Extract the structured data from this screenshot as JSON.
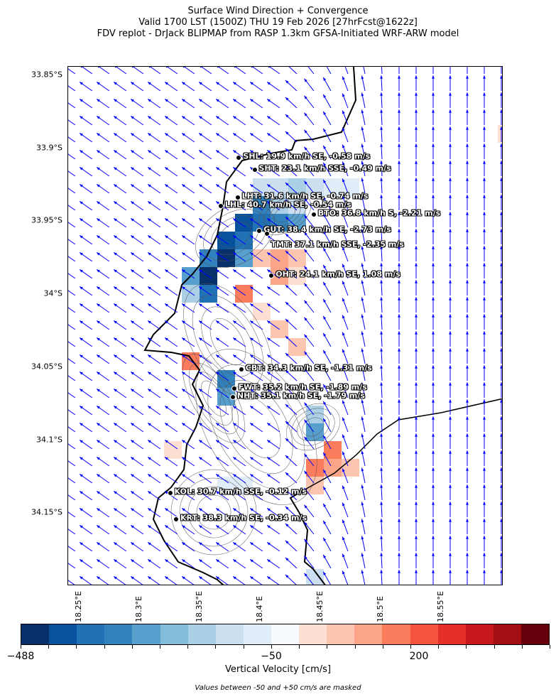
{
  "title": {
    "line1": "Surface Wind Direction + Convergence",
    "line2": "Valid 1700 LST (1500Z) THU 19 Feb 2026 [27hrFcst@1622z]",
    "line3": "FDV replot - DrJack BLIPMAP from RASP 1.3km GFSA-Initiated WRF-ARW model"
  },
  "axes": {
    "lat_ticks": [
      "33.85°S",
      "33.9°S",
      "33.95°S",
      "34°S",
      "34.05°S",
      "34.1°S",
      "34.15°S"
    ],
    "lon_ticks": [
      "18.25°E",
      "18.3°E",
      "18.35°E",
      "18.4°E",
      "18.45°E",
      "18.5°E",
      "18.55°E"
    ]
  },
  "stations": [
    {
      "id": "SHL",
      "label": "SHL: 19.9 km/h SE, -0.58 m/s",
      "lat": 33.907,
      "lon": 18.382
    },
    {
      "id": "SHT",
      "label": "SHT: 23.1 km/h SSE, -0.49 m/s",
      "lat": 33.915,
      "lon": 18.395
    },
    {
      "id": "LHT",
      "label": "LHT: 31.6 km/h SE, -0.74 m/s",
      "lat": 33.934,
      "lon": 18.381
    },
    {
      "id": "LHL",
      "label": "LHL: 40.7 km/h SE, -0.54 m/s",
      "lat": 33.94,
      "lon": 18.367
    },
    {
      "id": "BTO",
      "label": "BTO: 36.8 km/h S, -2.21 m/s",
      "lat": 33.946,
      "lon": 18.444
    },
    {
      "id": "GUT",
      "label": "GUT: 38.4 km/h SE, -2.73 m/s",
      "lat": 33.957,
      "lon": 18.399
    },
    {
      "id": "TMT",
      "label": "TMT: 37.1 km/h SSE, -2.35 m/s",
      "lat": 33.959,
      "lon": 18.405
    },
    {
      "id": "OHT",
      "label": "OHT: 24.1 km/h SE, 1.08 m/s",
      "lat": 33.988,
      "lon": 18.409
    },
    {
      "id": "CBT",
      "label": "CBT: 34.3 km/h SE, -1.31 m/s",
      "lat": 34.052,
      "lon": 18.384
    },
    {
      "id": "FWT",
      "label": "FWT: 35.2 km/h SE, -1.89 m/s",
      "lat": 34.065,
      "lon": 18.378
    },
    {
      "id": "NHT",
      "label": "NHT: 35.1 km/h SE, -1.79 m/s",
      "lat": 34.071,
      "lon": 18.377
    },
    {
      "id": "KOL",
      "label": "KOL: 30.7 km/h SSE, -0.12 m/s",
      "lat": 34.137,
      "lon": 18.325
    },
    {
      "id": "KRT",
      "label": "KRT: 38.3 km/h SE, -0.34 m/s",
      "lat": 34.155,
      "lon": 18.33
    }
  ],
  "wind_arrow_color": "#0000ff",
  "colorbar": {
    "label": "Vertical Velocity [cm/s]",
    "tick_labels": [
      "−488",
      "−50",
      "200"
    ],
    "colors": [
      "#08306b",
      "#08519c",
      "#2171b5",
      "#3182bd",
      "#57a0ce",
      "#84bcdb",
      "#abd0e6",
      "#cbdff1",
      "#e0ecf8",
      "#f7fbff",
      "#fee0d2",
      "#fcc5b0",
      "#fca487",
      "#fb7c5c",
      "#f5553d",
      "#e32f27",
      "#c5171c",
      "#a10f15",
      "#67000d"
    ],
    "note": "Values between -50 and +50 cm/s are masked"
  }
}
